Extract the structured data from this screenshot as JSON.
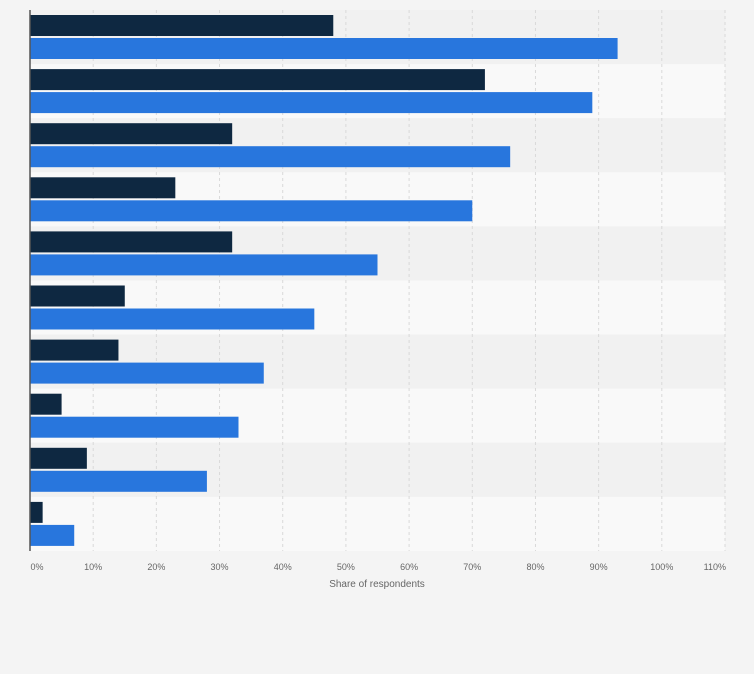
{
  "chart_data": {
    "type": "bar",
    "orientation": "horizontal",
    "title": "",
    "xlabel": "Share of respondents",
    "ylabel": "",
    "categories": [
      "",
      "",
      "",
      "",
      "",
      "",
      "",
      "",
      "",
      ""
    ],
    "series": [
      {
        "values": [
          48,
          72,
          32,
          23,
          32,
          15,
          14,
          5,
          9,
          2
        ]
      },
      {
        "values": [
          93,
          89,
          76,
          70,
          55,
          45,
          37,
          33,
          28,
          7
        ]
      }
    ],
    "xlim": [
      0,
      110
    ],
    "x_ticks": [
      0,
      10,
      20,
      30,
      40,
      50,
      60,
      70,
      80,
      90,
      100,
      110
    ],
    "x_tick_labels": [
      "0%",
      "10%",
      "20%",
      "30%",
      "40%",
      "50%",
      "60%",
      "70%",
      "80%",
      "90%",
      "100%",
      "110%"
    ],
    "grid": "vertical",
    "colors": {
      "series_1": "#0e2841",
      "series_2": "#2876dd",
      "grid": "#d9d9d9",
      "axis": "#555555",
      "tick_label": "#666666",
      "band_dark": "#f1f1f1",
      "band_light": "#f9f9f9",
      "background": "#f4f4f4"
    }
  }
}
